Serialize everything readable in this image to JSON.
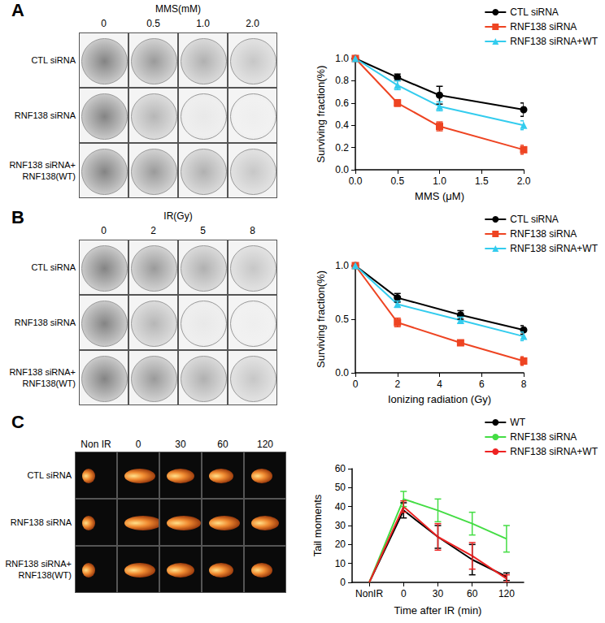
{
  "chart_data": [
    {
      "type": "line",
      "title": "A",
      "x_label": "MMS (μM)",
      "y_label": "Surviving fraction(%)",
      "x": [
        0,
        0.5,
        1.0,
        2.0
      ],
      "xlim": [
        0,
        2.0
      ],
      "xticks": [
        {
          "value": 0,
          "label": "0.0"
        },
        0.5,
        {
          "value": 1,
          "label": "1.0"
        },
        1.5,
        {
          "value": 2,
          "label": "2.0"
        }
      ],
      "ylim": [
        0,
        1.0
      ],
      "yticks": [
        {
          "value": 0,
          "label": "0.0"
        },
        0.2,
        0.4,
        0.6,
        0.8,
        {
          "value": 1,
          "label": "1.0"
        }
      ],
      "grid": false,
      "legend": "top-right",
      "series": [
        {
          "name": "CTL siRNA",
          "color": "#000000",
          "marker": "circle",
          "values": [
            1.0,
            0.83,
            0.67,
            0.54
          ],
          "errors": [
            0,
            0.03,
            0.08,
            0.06
          ]
        },
        {
          "name": "RNF138 siRNA",
          "color": "#ee4422",
          "marker": "square",
          "values": [
            1.0,
            0.6,
            0.39,
            0.18
          ],
          "errors": [
            0,
            0.03,
            0.04,
            0.04
          ]
        },
        {
          "name": "RNF138 siRNA+WT",
          "color": "#33ccee",
          "marker": "triangle",
          "values": [
            1.0,
            0.76,
            0.57,
            0.4
          ],
          "errors": [
            0,
            0.04,
            0.04,
            0.04
          ]
        }
      ]
    },
    {
      "type": "line",
      "title": "B",
      "x_label": "Ionizing radiation (Gy)",
      "y_label": "Surviving fraction(%)",
      "x": [
        0,
        2,
        5,
        8
      ],
      "xlim": [
        0,
        8
      ],
      "xticks": [
        0,
        2,
        4,
        6,
        8
      ],
      "ylim": [
        0,
        1.0
      ],
      "yticks": [
        {
          "value": 0,
          "label": "0.0"
        },
        0.5,
        {
          "value": 1,
          "label": "1.0"
        }
      ],
      "grid": false,
      "legend": "top-right",
      "series": [
        {
          "name": "CTL siRNA",
          "color": "#000000",
          "marker": "circle",
          "values": [
            1.0,
            0.7,
            0.54,
            0.4
          ],
          "errors": [
            0,
            0.04,
            0.04,
            0.04
          ]
        },
        {
          "name": "RNF138 siRNA",
          "color": "#ee4422",
          "marker": "square",
          "values": [
            1.0,
            0.47,
            0.28,
            0.11
          ],
          "errors": [
            0,
            0.04,
            0.02,
            0.04
          ]
        },
        {
          "name": "RNF138 siRNA+WT",
          "color": "#33ccee",
          "marker": "triangle",
          "values": [
            1.0,
            0.64,
            0.49,
            0.34
          ],
          "errors": [
            0,
            0.03,
            0.03,
            0.04
          ]
        }
      ]
    },
    {
      "type": "line",
      "title": "C",
      "x_label": "Time after IR (min)",
      "y_label": "Tail moments",
      "categories": [
        "NonIR",
        "0",
        "30",
        "60",
        "120"
      ],
      "ylim": [
        0,
        60
      ],
      "yticks": [
        0,
        10,
        20,
        30,
        40,
        50,
        60
      ],
      "grid": false,
      "legend": "top-right",
      "series": [
        {
          "name": "WT",
          "color": "#000000",
          "marker": "none",
          "values": [
            0,
            38,
            24,
            12,
            3
          ],
          "errors": [
            0,
            4,
            6,
            8,
            2
          ]
        },
        {
          "name": "RNF138 siRNA",
          "color": "#44dd44",
          "marker": "none",
          "values": [
            0,
            44,
            38,
            31,
            23
          ],
          "errors": [
            0,
            4,
            6,
            6,
            7
          ]
        },
        {
          "name": "RNF138 siRNA+WT",
          "color": "#ee2222",
          "marker": "none",
          "values": [
            0,
            40,
            24,
            14,
            2
          ],
          "errors": [
            0,
            3,
            7,
            7,
            2
          ]
        }
      ]
    }
  ],
  "image_panels": [
    {
      "title": "MMS(mM)",
      "columns": [
        "0",
        "0.5",
        "1.0",
        "2.0"
      ],
      "rows": [
        "CTL siRNA",
        "RNF138 siRNA",
        "RNF138 siRNA+\nRNF138(WT)"
      ]
    },
    {
      "title": "IR(Gy)",
      "columns": [
        "0",
        "2",
        "5",
        "8"
      ],
      "rows": [
        "CTL siRNA",
        "RNF138 siRNA",
        "RNF138 siRNA+\nRNF138(WT)"
      ]
    },
    {
      "columns": [
        "Non IR",
        "0",
        "30",
        "60",
        "120"
      ],
      "rows": [
        "CTL siRNA",
        "RNF138 siRNA",
        "RNF138 siRNA+\nRNF138(WT)"
      ]
    }
  ]
}
